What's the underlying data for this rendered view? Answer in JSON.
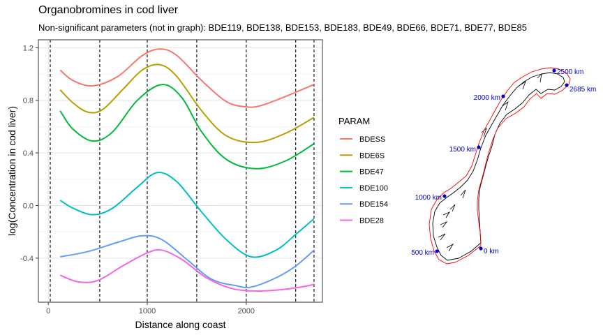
{
  "chart_data": {
    "type": "line",
    "title": "Organobromines in cod liver",
    "subtitle": "Non-significant parameters (not in graph): BDE119, BDE138, BDE153, BDE183, BDE49, BDE66, BDE71, BDE77, BDE85",
    "xlabel": "Distance along coast",
    "ylabel": "log(Concentration in cod liver)",
    "xlim": [
      -100,
      2770
    ],
    "ylim": [
      -0.735,
      1.26
    ],
    "x_ticks": [
      0,
      1000,
      2000
    ],
    "y_ticks": [
      -0.4,
      0.0,
      0.4,
      0.8,
      1.2
    ],
    "y_tick_labels": [
      "-0.4",
      "0.0",
      "0.4",
      "0.8",
      "1.2"
    ],
    "grid": true,
    "vlines": [
      20,
      520,
      1000,
      1500,
      2000,
      2500,
      2685
    ],
    "legend": {
      "title": "PARAM",
      "position": "right"
    },
    "series": [
      {
        "name": "BDESS",
        "color": "#F8766D",
        "x": [
          120,
          250,
          450,
          700,
          950,
          1130,
          1300,
          1550,
          1800,
          2000,
          2150,
          2400,
          2685
        ],
        "y": [
          1.03,
          0.95,
          0.91,
          0.98,
          1.14,
          1.19,
          1.14,
          0.95,
          0.79,
          0.75,
          0.76,
          0.83,
          0.92
        ]
      },
      {
        "name": "BDE6S",
        "color": "#B79F00",
        "x": [
          120,
          250,
          400,
          550,
          750,
          950,
          1130,
          1300,
          1550,
          1800,
          2100,
          2400,
          2685
        ],
        "y": [
          0.88,
          0.78,
          0.71,
          0.73,
          0.88,
          1.03,
          1.07,
          0.98,
          0.72,
          0.53,
          0.48,
          0.55,
          0.67
        ]
      },
      {
        "name": "BDE47",
        "color": "#00BA38",
        "x": [
          120,
          250,
          450,
          650,
          900,
          1150,
          1350,
          1550,
          1800,
          2100,
          2400,
          2685
        ],
        "y": [
          0.72,
          0.58,
          0.49,
          0.56,
          0.8,
          0.92,
          0.82,
          0.56,
          0.35,
          0.28,
          0.34,
          0.47
        ]
      },
      {
        "name": "BDE100",
        "color": "#00BFC4",
        "x": [
          120,
          250,
          450,
          650,
          900,
          1100,
          1300,
          1550,
          1800,
          2050,
          2300,
          2500,
          2685
        ],
        "y": [
          0.04,
          -0.02,
          -0.07,
          -0.02,
          0.14,
          0.25,
          0.18,
          -0.05,
          -0.26,
          -0.39,
          -0.34,
          -0.22,
          -0.1
        ]
      },
      {
        "name": "BDE154",
        "color": "#619CFF",
        "x": [
          120,
          400,
          700,
          950,
          1150,
          1400,
          1650,
          1900,
          2050,
          2300,
          2500,
          2685
        ],
        "y": [
          -0.39,
          -0.35,
          -0.28,
          -0.23,
          -0.26,
          -0.41,
          -0.56,
          -0.61,
          -0.62,
          -0.55,
          -0.46,
          -0.34
        ]
      },
      {
        "name": "BDE28",
        "color": "#F564E3",
        "x": [
          120,
          300,
          500,
          750,
          1000,
          1150,
          1350,
          1600,
          1850,
          2100,
          2350,
          2550,
          2685
        ],
        "y": [
          -0.53,
          -0.58,
          -0.57,
          -0.46,
          -0.36,
          -0.34,
          -0.41,
          -0.55,
          -0.63,
          -0.65,
          -0.64,
          -0.62,
          -0.6
        ]
      }
    ]
  },
  "map": {
    "markers": [
      {
        "label": "0 km"
      },
      {
        "label": "500 km"
      },
      {
        "label": "1000 km"
      },
      {
        "label": "1500 km"
      },
      {
        "label": "2000 km"
      },
      {
        "label": "2500 km"
      },
      {
        "label": "2685 km"
      }
    ],
    "marker_color": "#0000CD",
    "outline_color": "#FF0000"
  }
}
